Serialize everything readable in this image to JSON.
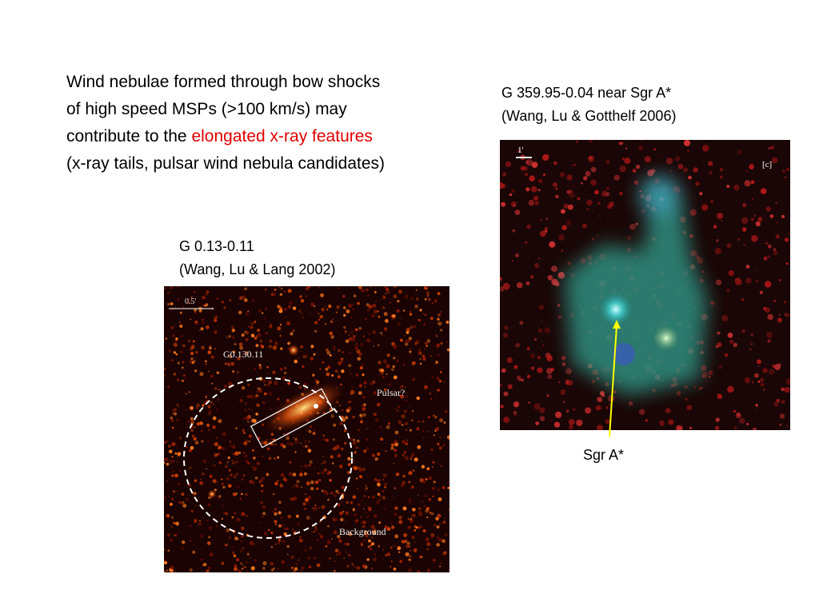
{
  "body": {
    "lines": [
      "Wind nebulae formed through bow shocks",
      "of high speed MSPs (>100 km/s) may"
    ],
    "line3_prefix": "contribute to the",
    "highlight": "elongated x-ray features",
    "line4": "(x-ray tails, pulsar wind nebula candidates)"
  },
  "left_figure": {
    "caption": [
      "G 0.13-0.11",
      "(Wang, Lu & Lang 2002)"
    ],
    "scale_label": "0.5'",
    "source_label": "G0.130.11",
    "pulsar_label": "Pulsar?",
    "background_label": "Background"
  },
  "right_figure": {
    "caption": [
      "G 359.95-0.04 near Sgr A*",
      "(Wang, Lu & Gotthelf 2006)"
    ],
    "scale_label": "1'",
    "panel_label": "[c]",
    "pointer_label": "Sgr A*"
  }
}
